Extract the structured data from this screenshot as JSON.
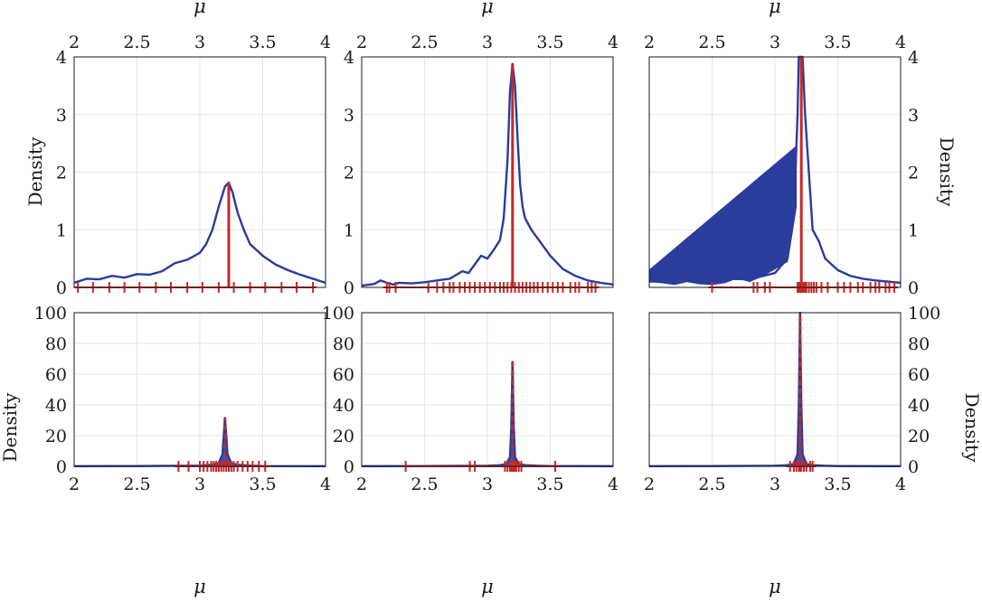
{
  "figure": {
    "colors": {
      "density": "#2a3c9c",
      "mean": "#c62828",
      "axis": "#1a1a1a",
      "grid": "#e6e6e6"
    },
    "panels": [
      {
        "id": "top-left",
        "density_ylabel": "Density",
        "xlabel_top": "μ",
        "xlabel_bottom": ""
      },
      {
        "id": "top-middle",
        "density_ylabel": "",
        "xlabel_top": "μ",
        "xlabel_bottom": ""
      },
      {
        "id": "top-right",
        "density_ylabel": "Density",
        "xlabel_top": "μ",
        "xlabel_bottom": ""
      },
      {
        "id": "bottom-left",
        "density_ylabel": "Density",
        "xlabel_top": "",
        "xlabel_bottom": "μ"
      },
      {
        "id": "bottom-middle",
        "density_ylabel": "",
        "xlabel_top": "",
        "xlabel_bottom": "μ"
      },
      {
        "id": "bottom-right",
        "density_ylabel": "Density",
        "xlabel_top": "",
        "xlabel_bottom": "μ"
      }
    ]
  },
  "chart_data": [
    {
      "type": "area",
      "xlim": [
        2,
        4
      ],
      "ylim": [
        0,
        4
      ],
      "xticks": [
        "2",
        "2.5",
        "3",
        "3.5",
        "4"
      ],
      "yticks": [
        "0",
        "1",
        "2",
        "3",
        "4"
      ],
      "xlabel": "μ",
      "ylabel": "Density",
      "x_axis_position": "top",
      "y_axis_position": "left",
      "density": {
        "x": [
          2.0,
          2.1,
          2.2,
          2.3,
          2.4,
          2.5,
          2.6,
          2.7,
          2.8,
          2.9,
          3.0,
          3.05,
          3.1,
          3.15,
          3.2,
          3.23,
          3.26,
          3.3,
          3.35,
          3.4,
          3.5,
          3.6,
          3.7,
          3.8,
          3.9,
          4.0
        ],
        "y": [
          0.08,
          0.15,
          0.14,
          0.2,
          0.17,
          0.23,
          0.22,
          0.28,
          0.42,
          0.48,
          0.6,
          0.75,
          1.0,
          1.4,
          1.75,
          1.82,
          1.65,
          1.3,
          1.0,
          0.75,
          0.55,
          0.4,
          0.3,
          0.22,
          0.15,
          0.08
        ]
      },
      "mean_line": 3.23,
      "rug": [
        2.03,
        2.15,
        2.28,
        2.4,
        2.52,
        2.65,
        2.77,
        2.9,
        3.02,
        3.15,
        3.27,
        3.4,
        3.52,
        3.65,
        3.77,
        3.9
      ]
    },
    {
      "type": "area",
      "xlim": [
        2,
        4
      ],
      "ylim": [
        0,
        4
      ],
      "xticks": [
        "2",
        "2.5",
        "3",
        "3.5",
        "4"
      ],
      "yticks": [
        "0",
        "1",
        "2",
        "3",
        "4"
      ],
      "xlabel": "μ",
      "ylabel": "",
      "x_axis_position": "top",
      "y_axis_position": "left",
      "density": {
        "x": [
          2.0,
          2.1,
          2.15,
          2.2,
          2.25,
          2.3,
          2.4,
          2.5,
          2.6,
          2.7,
          2.8,
          2.85,
          2.9,
          2.95,
          3.0,
          3.05,
          3.1,
          3.13,
          3.16,
          3.18,
          3.2,
          3.22,
          3.24,
          3.26,
          3.28,
          3.3,
          3.35,
          3.4,
          3.5,
          3.6,
          3.7,
          3.8,
          3.9,
          4.0
        ],
        "y": [
          0.03,
          0.06,
          0.12,
          0.08,
          0.05,
          0.08,
          0.07,
          0.09,
          0.12,
          0.15,
          0.28,
          0.25,
          0.4,
          0.55,
          0.5,
          0.65,
          0.82,
          1.2,
          2.2,
          3.4,
          3.88,
          3.5,
          2.6,
          1.8,
          1.4,
          1.2,
          1.0,
          0.85,
          0.55,
          0.32,
          0.2,
          0.12,
          0.08,
          0.05
        ]
      },
      "mean_line": 3.2,
      "rug": [
        2.2,
        2.22,
        2.27,
        2.53,
        2.6,
        2.65,
        2.7,
        2.73,
        2.78,
        2.82,
        2.86,
        2.9,
        2.94,
        2.98,
        3.02,
        3.06,
        3.1,
        3.13,
        3.16,
        3.19,
        3.22,
        3.25,
        3.28,
        3.31,
        3.34,
        3.37,
        3.4,
        3.44,
        3.48,
        3.52,
        3.56,
        3.6,
        3.66,
        3.7,
        3.73,
        3.8,
        3.83,
        3.86
      ]
    },
    {
      "type": "area",
      "xlim": [
        2,
        4
      ],
      "ylim": [
        0,
        4
      ],
      "xticks": [
        "2",
        "2.5",
        "3",
        "3.5",
        "4"
      ],
      "yticks": [
        "0",
        "1",
        "2",
        "3",
        "4"
      ],
      "xlabel": "μ",
      "ylabel": "Density",
      "x_axis_position": "top",
      "y_axis_position": "right",
      "density": {
        "x": [
          2.0,
          2.2,
          2.4,
          2.6,
          2.8,
          3.0,
          3.1,
          3.15,
          3.18,
          3.19,
          3.2,
          3.21,
          3.22,
          3.24,
          3.27,
          3.3,
          3.35,
          3.4,
          3.5,
          3.6,
          3.7,
          3.8,
          3.9,
          4.0
        ],
        "y": [
          0.1,
          0.12,
          0.1,
          0.15,
          0.14,
          0.25,
          0.5,
          1.2,
          3.0,
          4.0,
          4.0,
          4.0,
          4.0,
          3.0,
          2.0,
          1.0,
          0.8,
          0.5,
          0.3,
          0.2,
          0.15,
          0.12,
          0.1,
          0.08
        ]
      },
      "fill_polygon": {
        "x": [
          2.0,
          3.17,
          3.17,
          3.1,
          3.0,
          2.9,
          2.8,
          2.7,
          2.6,
          2.5,
          2.4,
          2.3,
          2.2,
          2.1,
          2.0
        ],
        "y": [
          0.3,
          2.45,
          1.4,
          0.45,
          0.32,
          0.2,
          0.1,
          0.16,
          0.08,
          0.05,
          0.06,
          0.1,
          0.05,
          0.08,
          0.1
        ]
      },
      "mean_line": 3.21,
      "rug": [
        2.5,
        2.83,
        2.86,
        2.92,
        2.96,
        3.18,
        3.19,
        3.2,
        3.21,
        3.22,
        3.23,
        3.24,
        3.25,
        3.27,
        3.29,
        3.31,
        3.33,
        3.37,
        3.42,
        3.5,
        3.55,
        3.6,
        3.66,
        3.7,
        3.76,
        3.8,
        3.83,
        3.88,
        3.91,
        3.95
      ]
    },
    {
      "type": "area",
      "xlim": [
        2,
        4
      ],
      "ylim": [
        0,
        100
      ],
      "xticks": [
        "2",
        "2.5",
        "3",
        "3.5",
        "4"
      ],
      "yticks": [
        "0",
        "20",
        "40",
        "60",
        "80",
        "100"
      ],
      "xlabel": "μ",
      "ylabel": "Density",
      "x_axis_position": "bottom",
      "y_axis_position": "left",
      "density": {
        "x": [
          2.0,
          2.5,
          3.0,
          3.1,
          3.15,
          3.18,
          3.19,
          3.2,
          3.21,
          3.22,
          3.25,
          3.3,
          3.4,
          3.5,
          4.0
        ],
        "y": [
          0.1,
          0.2,
          0.5,
          1.0,
          2.0,
          8.0,
          20.0,
          31.5,
          20.0,
          8.0,
          2.0,
          1.0,
          0.5,
          0.2,
          0.1
        ]
      },
      "mean_line": 3.2,
      "rug": [
        2.83,
        2.91,
        3.0,
        3.03,
        3.06,
        3.09,
        3.11,
        3.13,
        3.15,
        3.17,
        3.19,
        3.21,
        3.23,
        3.25,
        3.27,
        3.3,
        3.34,
        3.38,
        3.42,
        3.47,
        3.52
      ]
    },
    {
      "type": "area",
      "xlim": [
        2,
        4
      ],
      "ylim": [
        0,
        100
      ],
      "xticks": [
        "2",
        "2.5",
        "3",
        "3.5",
        "4"
      ],
      "yticks": [
        "0",
        "20",
        "40",
        "60",
        "80",
        "100"
      ],
      "xlabel": "μ",
      "ylabel": "",
      "x_axis_position": "bottom",
      "y_axis_position": "left",
      "density": {
        "x": [
          2.0,
          2.5,
          3.0,
          3.1,
          3.15,
          3.18,
          3.19,
          3.2,
          3.21,
          3.22,
          3.25,
          3.3,
          3.4,
          3.5,
          4.0
        ],
        "y": [
          0.1,
          0.2,
          0.4,
          0.8,
          1.5,
          6.0,
          25.0,
          68.0,
          25.0,
          6.0,
          1.5,
          0.8,
          0.4,
          0.2,
          0.1
        ]
      },
      "mean_line": 3.2,
      "rug": [
        2.35,
        2.86,
        2.9,
        3.14,
        3.16,
        3.18,
        3.19,
        3.2,
        3.21,
        3.22,
        3.23,
        3.25,
        3.27,
        3.54
      ]
    },
    {
      "type": "area",
      "xlim": [
        2,
        4
      ],
      "ylim": [
        0,
        100
      ],
      "xticks": [
        "2",
        "2.5",
        "3",
        "3.5",
        "4"
      ],
      "yticks": [
        "0",
        "20",
        "40",
        "60",
        "80",
        "100"
      ],
      "xlabel": "μ",
      "ylabel": "Density",
      "x_axis_position": "bottom",
      "y_axis_position": "right",
      "density": {
        "x": [
          2.0,
          2.5,
          3.0,
          3.1,
          3.15,
          3.18,
          3.19,
          3.2,
          3.21,
          3.22,
          3.25,
          3.3,
          3.4,
          3.5,
          4.0
        ],
        "y": [
          0.1,
          0.2,
          0.4,
          0.8,
          1.5,
          8.0,
          40.0,
          100.0,
          40.0,
          8.0,
          1.5,
          0.8,
          0.4,
          0.2,
          0.1
        ]
      },
      "mean_line": 3.2,
      "rug": [
        3.12,
        3.15,
        3.17,
        3.19,
        3.2,
        3.21,
        3.23,
        3.25,
        3.28,
        3.3
      ]
    }
  ]
}
